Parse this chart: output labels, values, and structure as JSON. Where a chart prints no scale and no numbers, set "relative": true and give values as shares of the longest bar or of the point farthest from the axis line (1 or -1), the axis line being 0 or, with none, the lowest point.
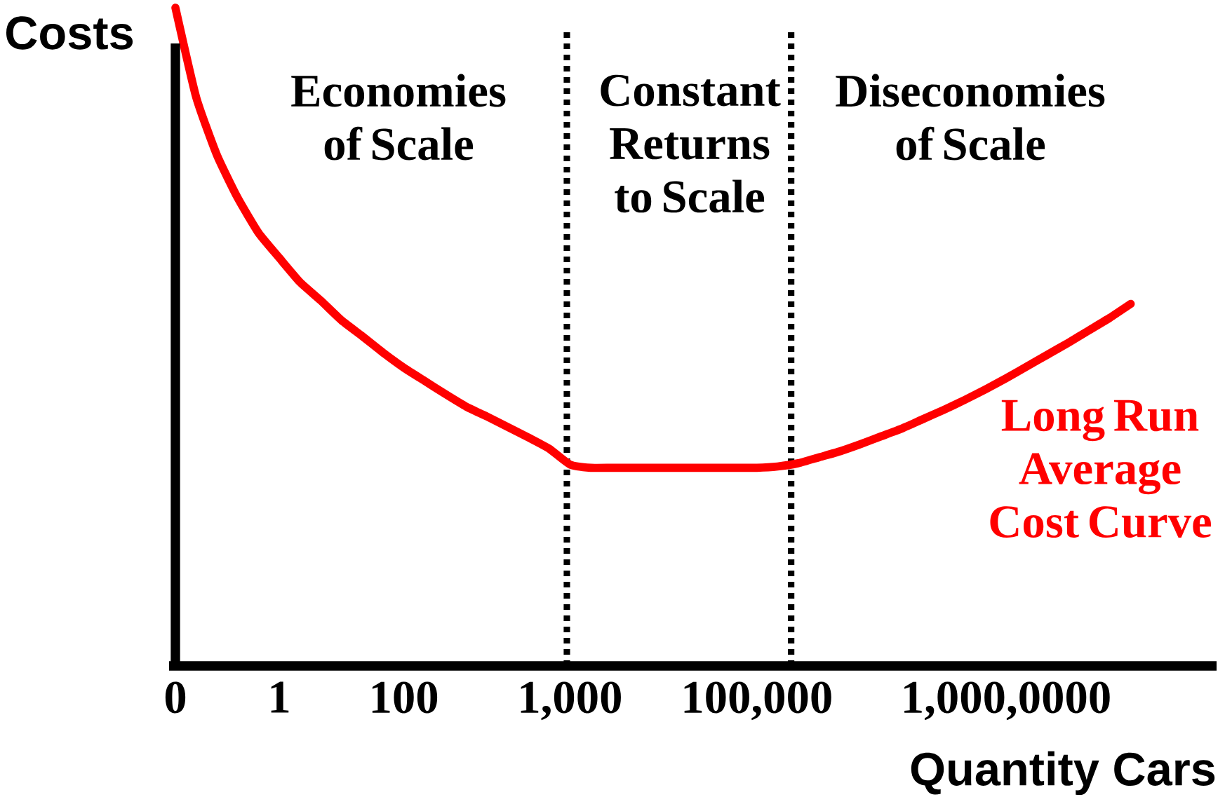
{
  "chart_data": {
    "type": "line",
    "relative": true,
    "xlabel": "Quantity Cars",
    "ylabel": "Costs",
    "categories": [
      "0",
      null,
      null,
      null,
      null,
      "1",
      null,
      null,
      null,
      null,
      null,
      "100",
      null,
      null,
      null,
      null,
      null,
      null,
      null,
      "1,000",
      null,
      null,
      null,
      null,
      null,
      null,
      null,
      null,
      "100,000",
      null,
      null,
      null,
      null,
      null,
      null,
      null,
      null,
      null,
      null,
      null,
      "1,000,0000",
      null,
      null,
      null,
      null,
      null,
      null,
      null,
      null,
      null
    ],
    "series": [
      {
        "name": "Long Run Average Cost Curve",
        "color": "#ff0000",
        "line_style": "solid",
        "values": [
          1.0,
          0.864,
          0.776,
          0.711,
          0.658,
          0.62,
          0.583,
          0.555,
          0.525,
          0.501,
          0.476,
          0.453,
          0.433,
          0.413,
          0.394,
          0.379,
          0.363,
          0.347,
          0.33,
          0.306,
          0.301,
          0.301,
          0.301,
          0.301,
          0.301,
          0.301,
          0.301,
          0.301,
          0.301,
          0.303,
          0.308,
          0.317,
          0.326,
          0.337,
          0.349,
          0.361,
          0.375,
          0.389,
          0.404,
          0.42,
          0.437,
          0.455,
          0.473,
          0.491,
          0.51,
          0.529,
          0.55,
          null,
          null,
          null
        ]
      }
    ],
    "annotations": [
      "Economies of Scale",
      "Constant Returns to Scale",
      "Diseconomies of Scale"
    ]
  }
}
